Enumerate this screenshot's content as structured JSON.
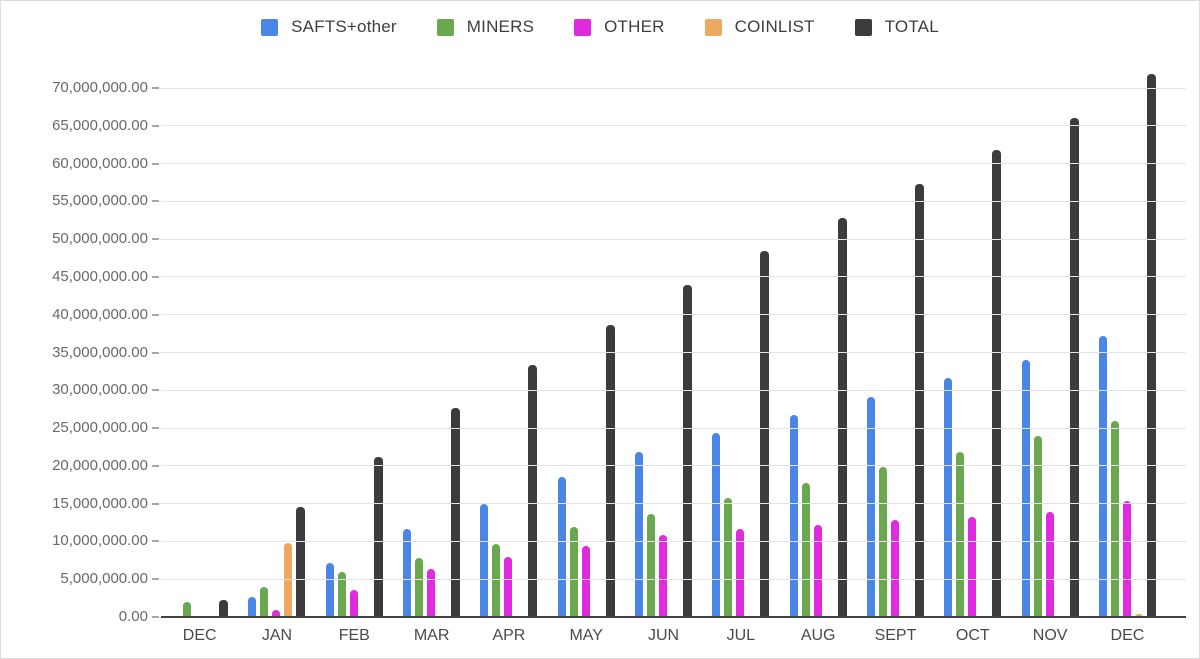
{
  "chart_data": {
    "type": "bar",
    "title": "",
    "xlabel": "",
    "ylabel": "",
    "categories": [
      "DEC",
      "JAN",
      "FEB",
      "MAR",
      "APR",
      "MAY",
      "JUN",
      "JUL",
      "AUG",
      "SEPT",
      "OCT",
      "NOV",
      "DEC"
    ],
    "series": [
      {
        "name": "SAFTS+other",
        "color": "#4a86e8",
        "values": [
          0,
          2700000,
          7200000,
          11700000,
          15000000,
          18500000,
          21900000,
          24300000,
          26700000,
          29100000,
          31600000,
          34000000,
          37200000
        ]
      },
      {
        "name": "MINERS",
        "color": "#6aa84f",
        "values": [
          2000000,
          4000000,
          6000000,
          7800000,
          9700000,
          11900000,
          13700000,
          15700000,
          17800000,
          19900000,
          21900000,
          23900000,
          25900000
        ]
      },
      {
        "name": "OTHER",
        "color": "#e02ae0",
        "values": [
          0,
          900000,
          3600000,
          6300000,
          7900000,
          9400000,
          10900000,
          11600000,
          12200000,
          12800000,
          13300000,
          13900000,
          15300000
        ]
      },
      {
        "name": "COINLIST",
        "color": "#eda861",
        "values": [
          0,
          9800000,
          0,
          0,
          0,
          0,
          0,
          0,
          0,
          0,
          0,
          0,
          400000
        ]
      },
      {
        "name": "TOTAL",
        "color": "#3c3c3c",
        "values": [
          2200000,
          14500000,
          21200000,
          27700000,
          33300000,
          38600000,
          44000000,
          48400000,
          52800000,
          57300000,
          61800000,
          66000000,
          71800000
        ]
      }
    ],
    "ylim": [
      0,
      70000000
    ],
    "y_tick_interval": 5000000,
    "y_tick_labels": [
      "0.00",
      "5,000,000.00",
      "10,000,000.00",
      "15,000,000.00",
      "20,000,000.00",
      "25,000,000.00",
      "30,000,000.00",
      "35,000,000.00",
      "40,000,000.00",
      "45,000,000.00",
      "50,000,000.00",
      "55,000,000.00",
      "60,000,000.00",
      "65,000,000.00",
      "70,000,000.00"
    ],
    "grid": true,
    "legend_position": "top"
  },
  "colors": {
    "background": "#ffffff",
    "gridline": "#e4e4e4",
    "axis_line": "#424242",
    "tick_text": "#696969",
    "month_text": "#4a4a4a",
    "legend_text": "#3f3f3f"
  }
}
